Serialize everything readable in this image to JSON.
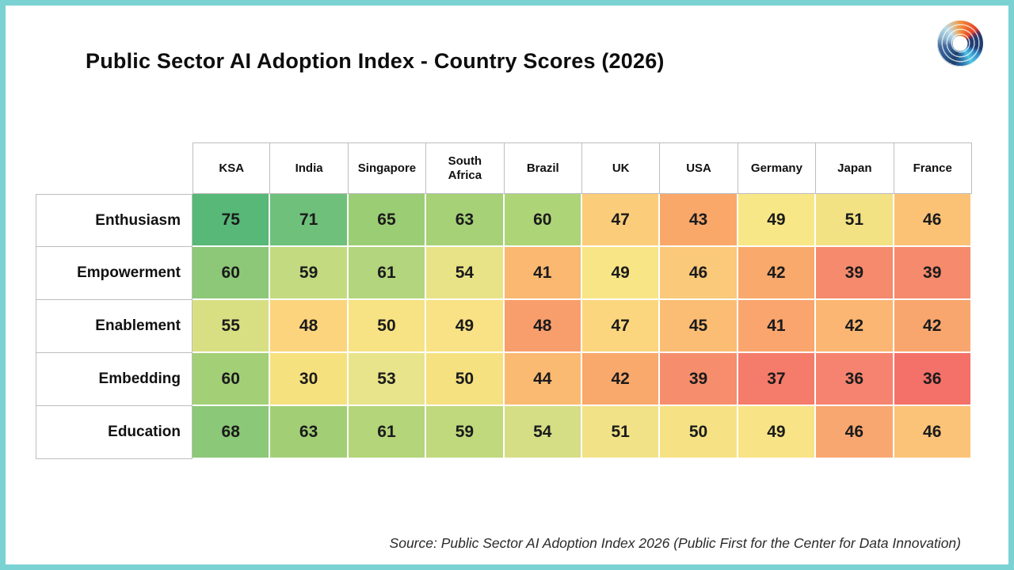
{
  "header": {
    "title": "Public Sector AI Adoption Index - Country Scores (2026)"
  },
  "logo": {
    "name": "public-first-logo"
  },
  "chart_data": {
    "type": "heatmap",
    "title": "Public Sector AI Adoption Index - Country Scores (2026)",
    "columns": [
      "KSA",
      "India",
      "Singapore",
      "South Africa",
      "Brazil",
      "UK",
      "USA",
      "Germany",
      "Japan",
      "France"
    ],
    "rows": [
      "Enthusiasm",
      "Empowerment",
      "Enablement",
      "Embedding",
      "Education"
    ],
    "values": [
      [
        75,
        71,
        65,
        63,
        60,
        47,
        43,
        49,
        51,
        46
      ],
      [
        60,
        59,
        61,
        54,
        41,
        49,
        46,
        42,
        39,
        39
      ],
      [
        55,
        48,
        50,
        49,
        48,
        47,
        45,
        41,
        42,
        42
      ],
      [
        60,
        30,
        53,
        50,
        44,
        42,
        39,
        37,
        36,
        36
      ],
      [
        68,
        63,
        61,
        59,
        54,
        51,
        50,
        49,
        46,
        46
      ]
    ],
    "cell_colors": [
      [
        "#57b878",
        "#6fc07b",
        "#9bcd75",
        "#a6d177",
        "#aed478",
        "#fbcd7a",
        "#f9a86a",
        "#f8e786",
        "#f3e284",
        "#fbc276"
      ],
      [
        "#8cc878",
        "#c3da80",
        "#b3d57d",
        "#e9e388",
        "#fab871",
        "#f8e585",
        "#fbc97a",
        "#f8a96b",
        "#f58a6c",
        "#f58a6c"
      ],
      [
        "#d8df83",
        "#fbd47d",
        "#f7e284",
        "#f8e285",
        "#f89e6c",
        "#fbd67e",
        "#fbbd73",
        "#f9a56d",
        "#fab672",
        "#f9a66e"
      ],
      [
        "#a3d077",
        "#f6e17f",
        "#e8e48b",
        "#f6e181",
        "#fbba72",
        "#f8a96b",
        "#f68e6d",
        "#f57b6b",
        "#f6836f",
        "#f4716a"
      ],
      [
        "#8bc878",
        "#a2cf75",
        "#b4d579",
        "#bfd97c",
        "#d5de85",
        "#f1e287",
        "#f6e284",
        "#f8e486",
        "#f9a770",
        "#fbc377"
      ]
    ],
    "value_range": [
      30,
      75
    ],
    "legend": "none",
    "grid": "white gaps between colored cells, gray borders on headers and row labels"
  },
  "footer": {
    "source": "Source: Public Sector AI Adoption Index 2026 (Public First for the Center for Data Innovation)"
  },
  "colors": {
    "frame_border": "#7bd2d2",
    "grid_line": "#bdbdbd",
    "cell_gap": "#ffffff",
    "title_text": "#0d0d0d"
  }
}
